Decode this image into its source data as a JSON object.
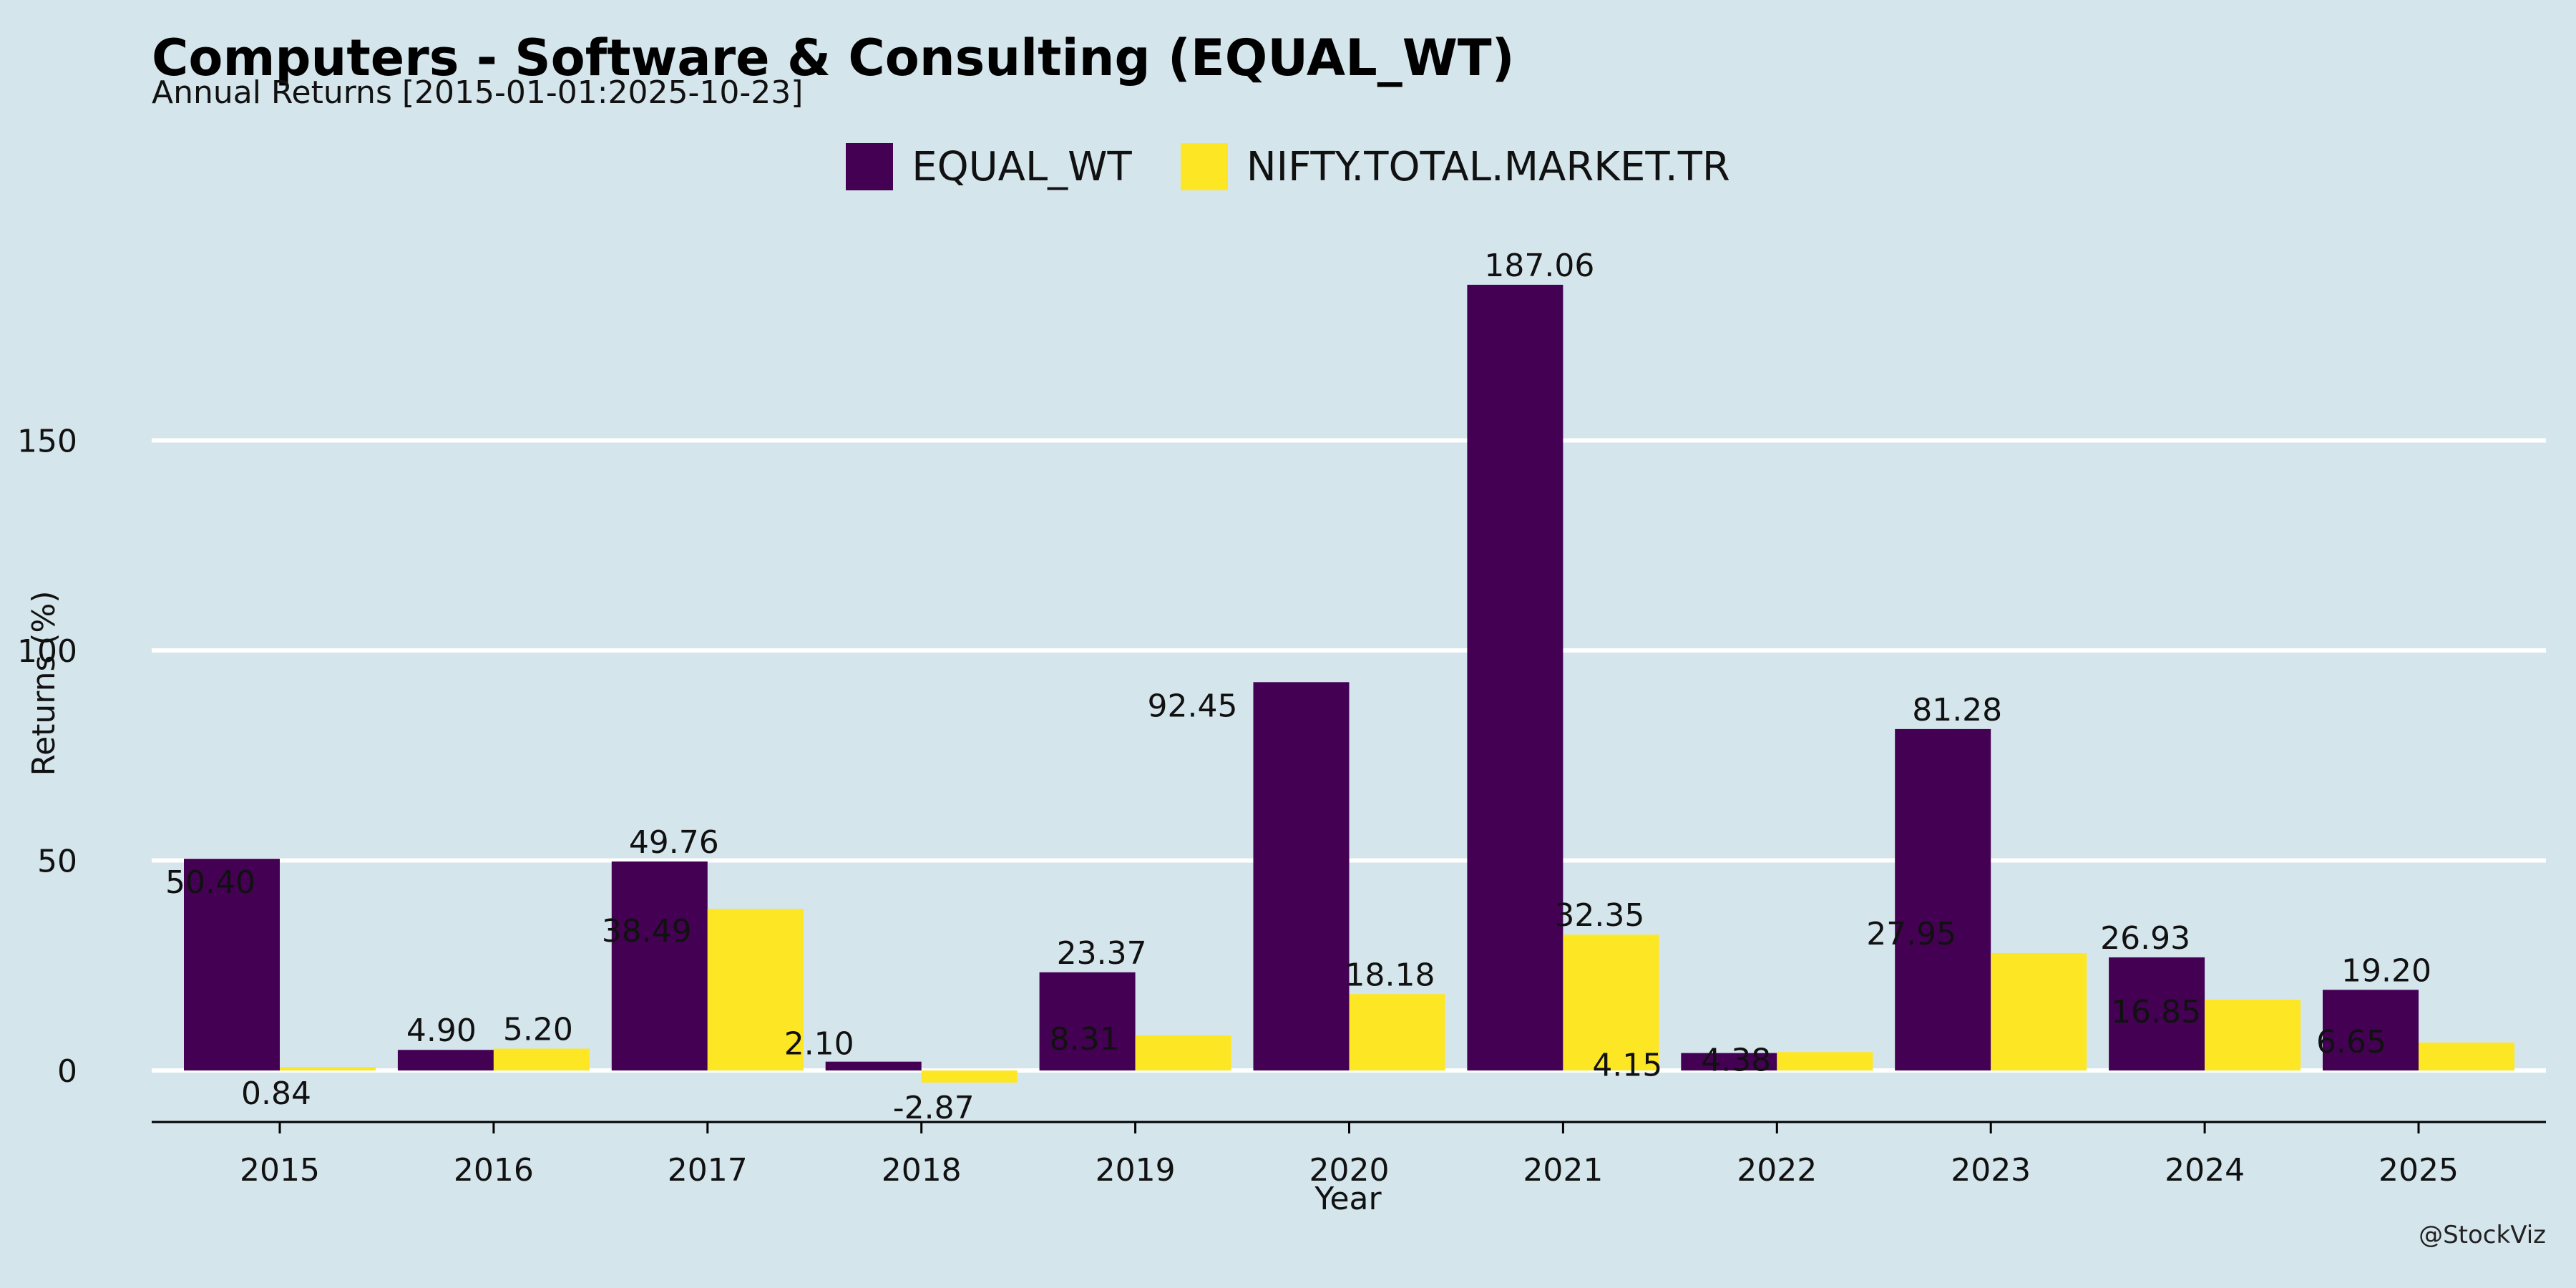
{
  "header": {
    "title": "Computers - Software & Consulting (EQUAL_WT)",
    "subtitle": "Annual Returns [2015-01-01:2025-10-23]"
  },
  "credit": "@StockViz",
  "colors": {
    "background": "#d5e5ec",
    "equal_wt": "#440154",
    "nifty": "#fde725",
    "grid": "#ffffff",
    "axis": "#000000"
  },
  "chart_data": {
    "type": "bar",
    "title": "Computers - Software & Consulting (EQUAL_WT)",
    "subtitle": "Annual Returns [2015-01-01:2025-10-23]",
    "xlabel": "Year",
    "ylabel": "Returns (%)",
    "categories": [
      "2015",
      "2016",
      "2017",
      "2018",
      "2019",
      "2020",
      "2021",
      "2022",
      "2023",
      "2024",
      "2025"
    ],
    "series": [
      {
        "name": "EQUAL_WT",
        "color": "#440154",
        "values": [
          50.4,
          4.9,
          49.76,
          2.1,
          23.37,
          92.45,
          187.06,
          4.15,
          81.28,
          26.93,
          19.2
        ],
        "labels": [
          "50.40",
          "4.90",
          "49.76",
          "2.10",
          "23.37",
          "92.45",
          "187.06",
          "4.15",
          "81.28",
          "26.93",
          "19.20"
        ]
      },
      {
        "name": "NIFTY.TOTAL.MARKET.TR",
        "color": "#fde725",
        "values": [
          0.84,
          5.2,
          38.49,
          -2.87,
          8.31,
          18.18,
          32.35,
          4.38,
          27.95,
          16.85,
          6.65
        ],
        "labels": [
          "0.84",
          "5.20",
          "38.49",
          "-2.87",
          "8.31",
          "18.18",
          "32.35",
          "4.38",
          "27.95",
          "16.85",
          "6.65"
        ]
      }
    ],
    "yticks": [
      0,
      50,
      100,
      150
    ],
    "ytick_labels": [
      "0",
      "50",
      "100",
      "150"
    ],
    "ylim": [
      -12,
      200
    ],
    "grid": "horizontal",
    "legend_position": "top-center"
  }
}
